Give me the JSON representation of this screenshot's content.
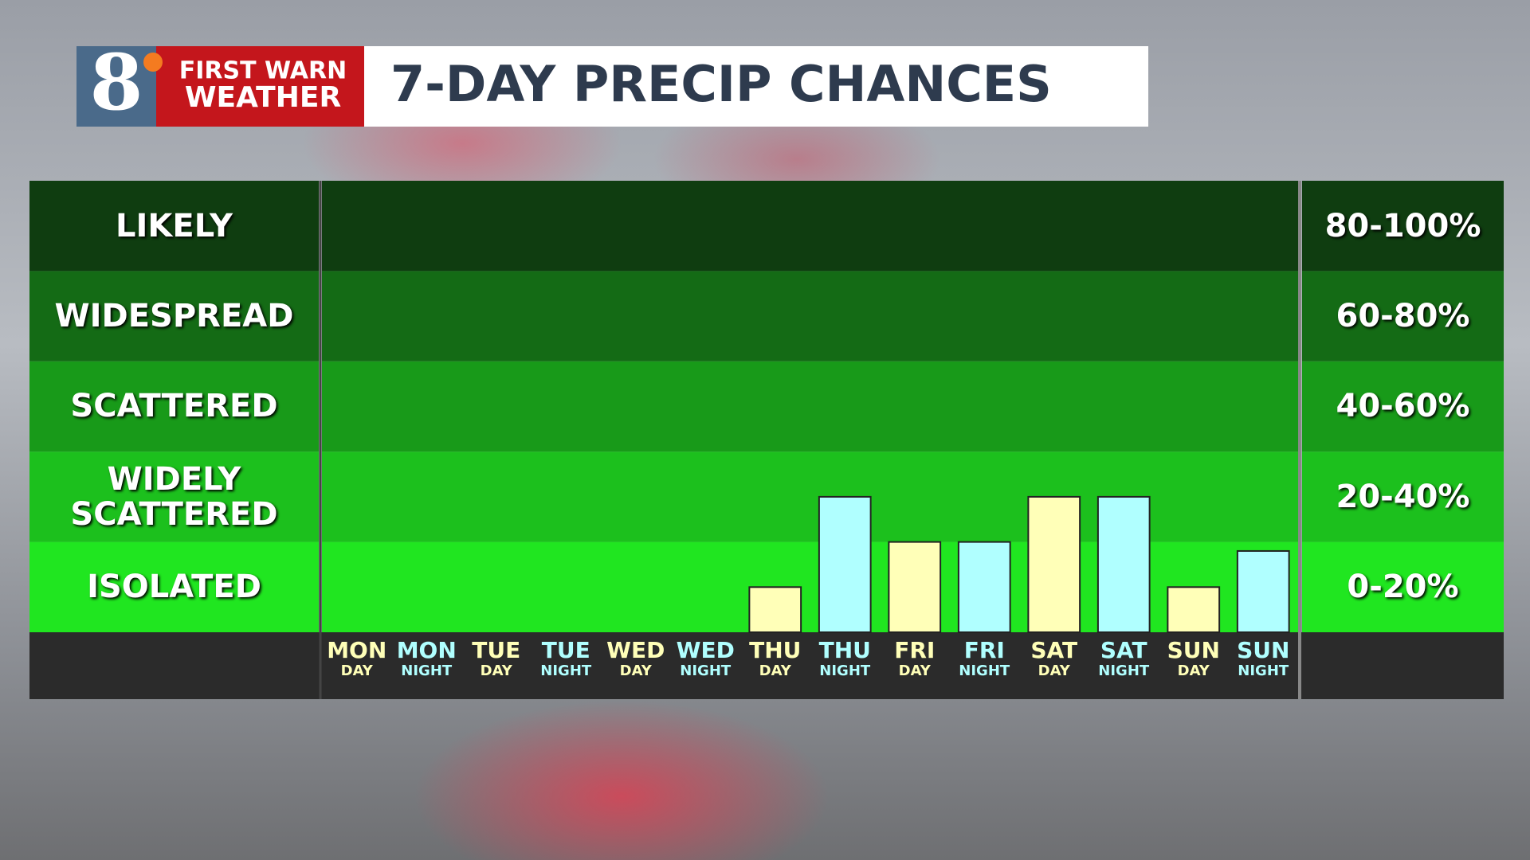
{
  "logo": {
    "number": "8",
    "line1": "FIRST WARN",
    "line2": "WEATHER"
  },
  "chart_data": {
    "type": "bar",
    "title": "7-DAY PRECIP CHANCES",
    "categories": [
      "MON",
      "MON",
      "TUE",
      "TUE",
      "WED",
      "WED",
      "THU",
      "THU",
      "FRI",
      "FRI",
      "SAT",
      "SAT",
      "SUN",
      "SUN"
    ],
    "subcategories": [
      "DAY",
      "NIGHT",
      "DAY",
      "NIGHT",
      "DAY",
      "NIGHT",
      "DAY",
      "NIGHT",
      "DAY",
      "NIGHT",
      "DAY",
      "NIGHT",
      "DAY",
      "NIGHT"
    ],
    "values": [
      0,
      0,
      0,
      0,
      0,
      0,
      10,
      30,
      20,
      20,
      30,
      30,
      10,
      18
    ],
    "colors": [
      "#ffffb8",
      "#b0ffff",
      "#ffffb8",
      "#b0ffff",
      "#ffffb8",
      "#b0ffff",
      "#ffffb8",
      "#b0ffff",
      "#ffffb8",
      "#b0ffff",
      "#ffffb8",
      "#b0ffff",
      "#ffffb8",
      "#b0ffff"
    ],
    "ylim": [
      0,
      100
    ],
    "bands": [
      {
        "label": "LIKELY",
        "range": "80-100%",
        "from": 80,
        "to": 100,
        "color": "#0f3d10"
      },
      {
        "label": "WIDESPREAD",
        "range": "60-80%",
        "from": 60,
        "to": 80,
        "color": "#146b15"
      },
      {
        "label": "SCATTERED",
        "range": "40-60%",
        "from": 40,
        "to": 60,
        "color": "#189a19"
      },
      {
        "label": "WIDELY SCATTERED",
        "range": "20-40%",
        "from": 20,
        "to": 40,
        "color": "#1cc01d"
      },
      {
        "label": "ISOLATED",
        "range": "0-20%",
        "from": 0,
        "to": 20,
        "color": "#20e620"
      }
    ]
  }
}
